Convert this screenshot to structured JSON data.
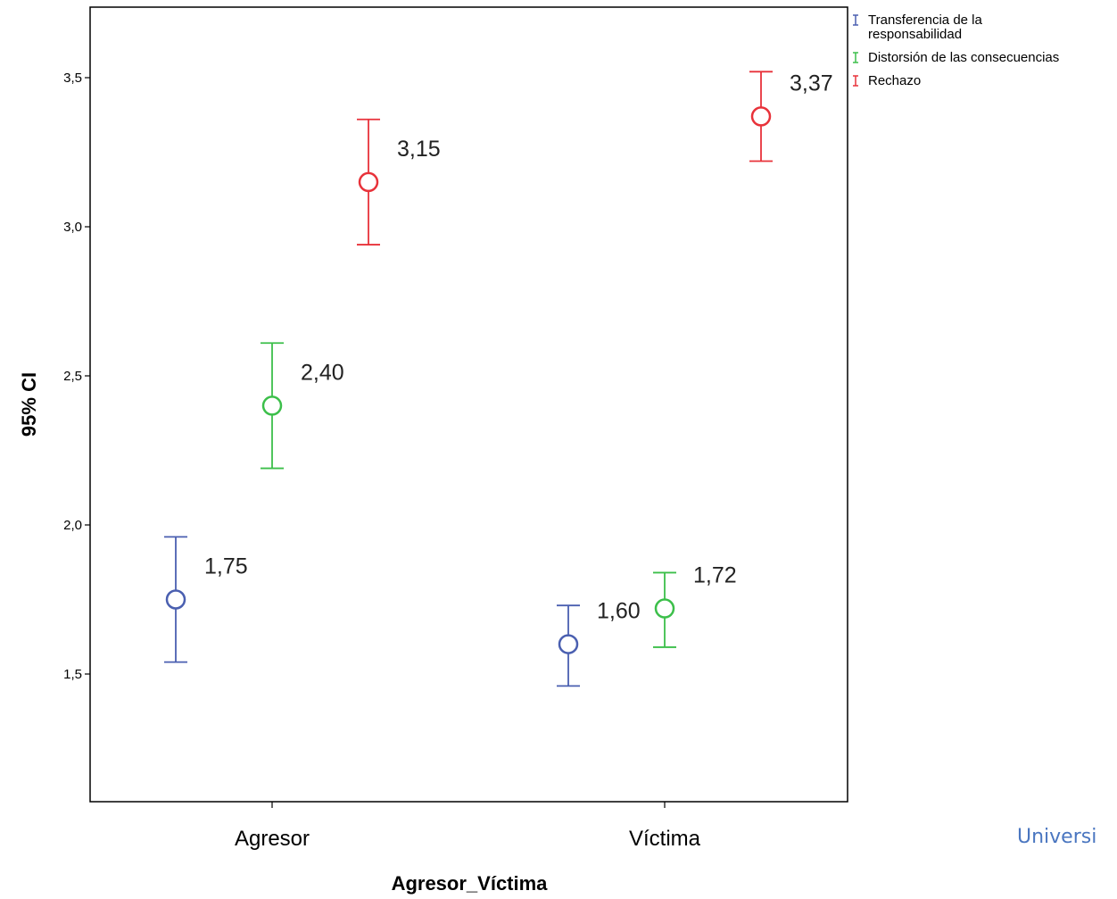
{
  "chart_data": {
    "type": "errorbar",
    "xlabel": "Agresor_Víctima",
    "ylabel": "95% CI",
    "categories": [
      "Agresor",
      "Víctima"
    ],
    "ylim": [
      1.1,
      3.72
    ],
    "yticks": [
      "1,5",
      "2,0",
      "2,5",
      "3,0",
      "3,5"
    ],
    "ytick_values": [
      1.5,
      2.0,
      2.5,
      3.0,
      3.5
    ],
    "legend_position": "top-right, outside plot",
    "grid": false,
    "series": [
      {
        "name": "Transferencia de la responsabilidad",
        "legend_lines": [
          "Transferencia de la",
          "responsabilidad"
        ],
        "color": "#4a5fb0",
        "means": [
          1.75,
          1.6
        ],
        "lower": [
          1.54,
          1.46
        ],
        "upper": [
          1.96,
          1.73
        ],
        "labels": [
          "1,75",
          "1,60"
        ]
      },
      {
        "name": "Distorsión de las consecuencias",
        "legend_lines": [
          "Distorsión de las consecuencias"
        ],
        "color": "#3cbf4a",
        "means": [
          2.4,
          1.72
        ],
        "lower": [
          2.19,
          1.59
        ],
        "upper": [
          2.61,
          1.84
        ],
        "labels": [
          "2,40",
          "1,72"
        ]
      },
      {
        "name": "Rechazo",
        "legend_lines": [
          "Rechazo"
        ],
        "color": "#e8323a",
        "means": [
          3.15,
          3.37
        ],
        "lower": [
          2.94,
          3.22
        ],
        "upper": [
          3.36,
          3.52
        ],
        "labels": [
          "3,15",
          "3,37"
        ]
      }
    ]
  },
  "watermark": "Universi"
}
